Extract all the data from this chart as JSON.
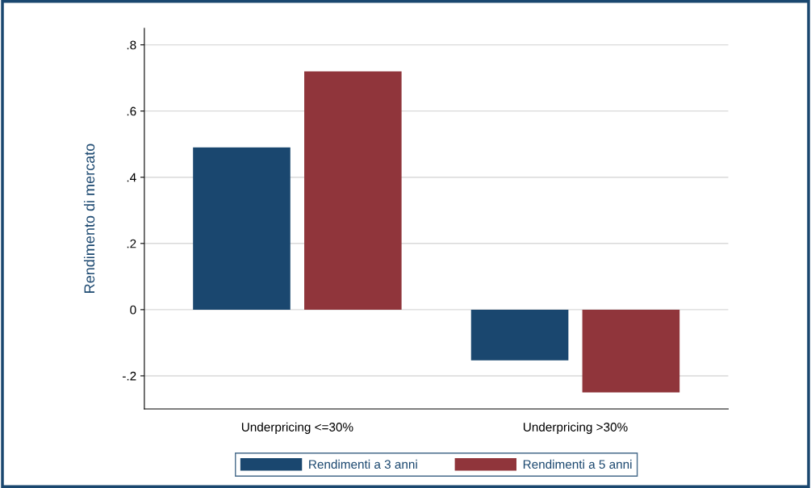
{
  "chart_data": {
    "type": "bar",
    "ylabel": "Rendimento di mercato",
    "categories": [
      "Underpricing <=30%",
      "Underpricing >30%"
    ],
    "series": [
      {
        "name": "Rendimenti a 3 anni",
        "color": "#1a476f",
        "values": [
          0.49,
          -0.153
        ]
      },
      {
        "name": "Rendimenti a 5 anni",
        "color": "#90353b",
        "values": [
          0.72,
          -0.25
        ]
      }
    ],
    "ylim": [
      -0.3,
      0.85
    ],
    "yticks": [
      {
        "value": -0.2,
        "label": "-.2"
      },
      0,
      {
        "value": 0.2,
        "label": ".2"
      },
      {
        "value": 0.4,
        "label": ".4"
      },
      {
        "value": 0.6,
        "label": ".6"
      },
      {
        "value": 0.8,
        "label": ".8"
      }
    ],
    "grid": "y",
    "legend": "bottom"
  }
}
